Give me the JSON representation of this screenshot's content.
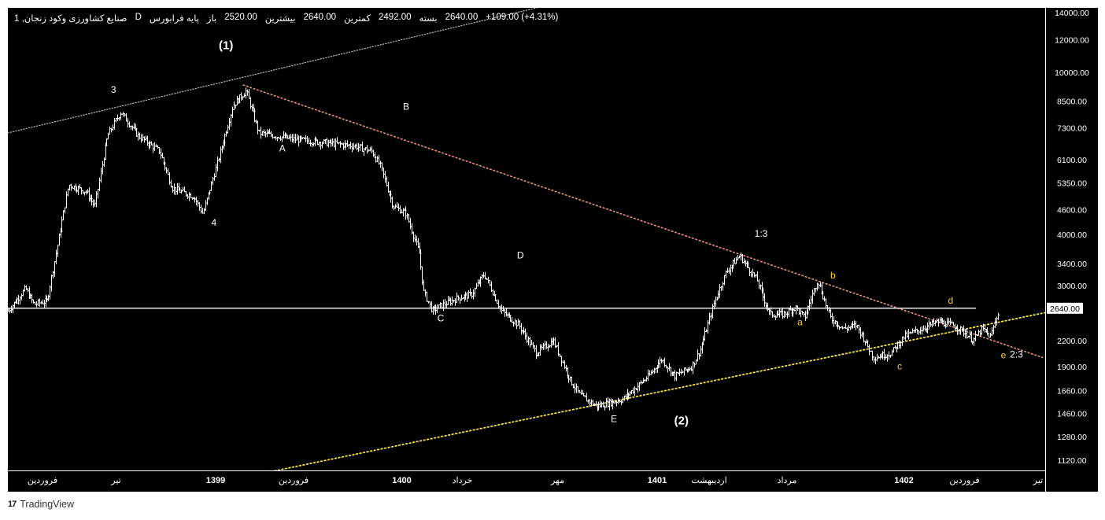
{
  "header": {
    "name": "صنایع کشاورزی وکود زنجان, 1",
    "suffix": "D",
    "market": "پایه فرابورس",
    "open_label": "باز",
    "open": "2520.00",
    "high_label": "بیشترین",
    "high": "2640.00",
    "low_label": "کمترین",
    "low": "2492.00",
    "close_label": "بسته",
    "close": "2640.00",
    "change": "+109.00 (+4.31%)"
  },
  "footer": {
    "logo_text": "TradingView",
    "logo_mark": "17"
  },
  "colors": {
    "background": "#000000",
    "bars": "#ffffff",
    "resistance_line": "#e8908a",
    "support_line": "#f2e34a",
    "gray_line": "#bfbfbf",
    "label_white": "#ffffff",
    "label_yellow": "#f2d33a"
  },
  "chart_data": {
    "type": "ohlc",
    "y_scale": "log",
    "y_ticks": [
      14000,
      12000,
      10000,
      8500,
      7300,
      6100,
      5350,
      4600,
      4000,
      3400,
      3000,
      2640,
      2200,
      1900,
      1660,
      1460,
      1280,
      1120
    ],
    "y_tick_labels": [
      "14000.00",
      "12000.00",
      "10000.00",
      "8500.00",
      "7300.00",
      "6100.00",
      "5350.00",
      "4600.00",
      "4000.00",
      "3400.00",
      "3000.00",
      "2640.00",
      "2200.00",
      "1900.00",
      "1660.00",
      "1460.00",
      "1280.00",
      "1120.00"
    ],
    "last_price": 2640,
    "last_price_label": "2640.00",
    "x_ticks": [
      {
        "label": "فروردین",
        "t": 0.04
      },
      {
        "label": "تیر",
        "t": 0.125
      },
      {
        "label": "1399",
        "t": 0.24
      },
      {
        "label": "فروردین",
        "t": 0.33
      },
      {
        "label": "1400",
        "t": 0.455
      },
      {
        "label": "خرداد",
        "t": 0.525
      },
      {
        "label": "مهر",
        "t": 0.635
      },
      {
        "label": "1401",
        "t": 0.75
      },
      {
        "label": "اردیبهشت",
        "t": 0.81
      },
      {
        "label": "مرداد",
        "t": 0.9
      },
      {
        "label": "1402",
        "t": 1.035
      },
      {
        "label": "فروردین",
        "t": 1.105
      },
      {
        "label": "تیر",
        "t": 1.19
      }
    ],
    "price_path": [
      {
        "t": 0.0,
        "p": 2600
      },
      {
        "t": 0.02,
        "p": 2950
      },
      {
        "t": 0.03,
        "p": 2700
      },
      {
        "t": 0.045,
        "p": 2750
      },
      {
        "t": 0.07,
        "p": 5300
      },
      {
        "t": 0.09,
        "p": 5100
      },
      {
        "t": 0.1,
        "p": 4700
      },
      {
        "t": 0.115,
        "p": 7000
      },
      {
        "t": 0.13,
        "p": 8000
      },
      {
        "t": 0.15,
        "p": 7000
      },
      {
        "t": 0.175,
        "p": 6400
      },
      {
        "t": 0.19,
        "p": 5200
      },
      {
        "t": 0.215,
        "p": 4950
      },
      {
        "t": 0.225,
        "p": 4500
      },
      {
        "t": 0.24,
        "p": 5800
      },
      {
        "t": 0.26,
        "p": 8300
      },
      {
        "t": 0.275,
        "p": 9000
      },
      {
        "t": 0.29,
        "p": 7100
      },
      {
        "t": 0.33,
        "p": 6850
      },
      {
        "t": 0.4,
        "p": 6600
      },
      {
        "t": 0.42,
        "p": 6400
      },
      {
        "t": 0.43,
        "p": 5900
      },
      {
        "t": 0.445,
        "p": 4700
      },
      {
        "t": 0.46,
        "p": 4500
      },
      {
        "t": 0.475,
        "p": 3600
      },
      {
        "t": 0.48,
        "p": 2900
      },
      {
        "t": 0.49,
        "p": 2600
      },
      {
        "t": 0.5,
        "p": 2680
      },
      {
        "t": 0.52,
        "p": 2800
      },
      {
        "t": 0.535,
        "p": 2850
      },
      {
        "t": 0.55,
        "p": 3200
      },
      {
        "t": 0.57,
        "p": 2600
      },
      {
        "t": 0.59,
        "p": 2400
      },
      {
        "t": 0.61,
        "p": 2050
      },
      {
        "t": 0.63,
        "p": 2200
      },
      {
        "t": 0.65,
        "p": 1750
      },
      {
        "t": 0.66,
        "p": 1620
      },
      {
        "t": 0.68,
        "p": 1520
      },
      {
        "t": 0.71,
        "p": 1580
      },
      {
        "t": 0.74,
        "p": 1800
      },
      {
        "t": 0.755,
        "p": 1980
      },
      {
        "t": 0.77,
        "p": 1800
      },
      {
        "t": 0.79,
        "p": 1900
      },
      {
        "t": 0.8,
        "p": 2100
      },
      {
        "t": 0.815,
        "p": 2700
      },
      {
        "t": 0.83,
        "p": 3250
      },
      {
        "t": 0.845,
        "p": 3550
      },
      {
        "t": 0.865,
        "p": 3100
      },
      {
        "t": 0.88,
        "p": 2550
      },
      {
        "t": 0.895,
        "p": 2550
      },
      {
        "t": 0.91,
        "p": 2650
      },
      {
        "t": 0.92,
        "p": 2500
      },
      {
        "t": 0.935,
        "p": 3100
      },
      {
        "t": 0.95,
        "p": 2500
      },
      {
        "t": 0.965,
        "p": 2350
      },
      {
        "t": 0.98,
        "p": 2400
      },
      {
        "t": 1.0,
        "p": 2000
      },
      {
        "t": 1.02,
        "p": 2050
      },
      {
        "t": 1.035,
        "p": 2250
      },
      {
        "t": 1.055,
        "p": 2350
      },
      {
        "t": 1.075,
        "p": 2450
      },
      {
        "t": 1.095,
        "p": 2380
      },
      {
        "t": 1.105,
        "p": 2300
      },
      {
        "t": 1.115,
        "p": 2200
      },
      {
        "t": 1.125,
        "p": 2350
      },
      {
        "t": 1.135,
        "p": 2250
      },
      {
        "t": 1.145,
        "p": 2640
      }
    ],
    "trendlines": [
      {
        "name": "upper-channel",
        "style": "gray",
        "from": {
          "t": 0.0,
          "p": 7100
        },
        "to": {
          "t": 0.6,
          "p": 14200
        }
      },
      {
        "name": "resistance",
        "style": "red",
        "from": {
          "t": 0.272,
          "p": 9300
        },
        "to": {
          "t": 1.195,
          "p": 2000
        }
      },
      {
        "name": "support",
        "style": "yellow",
        "from": {
          "t": 0.255,
          "p": 1000
        },
        "to": {
          "t": 1.2,
          "p": 2580
        }
      }
    ],
    "annotations": [
      {
        "text": "(1)",
        "t": 0.252,
        "p": 11400,
        "color": "white"
      },
      {
        "text": "3",
        "t": 0.122,
        "p": 8900,
        "color": "white"
      },
      {
        "text": "4",
        "t": 0.238,
        "p": 4200,
        "color": "white"
      },
      {
        "text": "A",
        "t": 0.317,
        "p": 6400,
        "color": "white"
      },
      {
        "text": "B",
        "t": 0.46,
        "p": 8100,
        "color": "white"
      },
      {
        "text": "C",
        "t": 0.5,
        "p": 2450,
        "color": "white"
      },
      {
        "text": "D",
        "t": 0.592,
        "p": 3500,
        "color": "white"
      },
      {
        "text": "E",
        "t": 0.7,
        "p": 1390,
        "color": "white"
      },
      {
        "text": "(2)",
        "t": 0.778,
        "p": 1370,
        "color": "white"
      },
      {
        "text": "1:3",
        "t": 0.87,
        "p": 3950,
        "color": "white"
      },
      {
        "text": "a",
        "t": 0.915,
        "p": 2400,
        "color": "yellow"
      },
      {
        "text": "b",
        "t": 0.953,
        "p": 3120,
        "color": "yellow"
      },
      {
        "text": "c",
        "t": 1.03,
        "p": 1870,
        "color": "yellow"
      },
      {
        "text": "d",
        "t": 1.089,
        "p": 2710,
        "color": "yellow"
      },
      {
        "text": "e",
        "t": 1.15,
        "p": 1990,
        "color": "yellow"
      },
      {
        "text": "2:3",
        "t": 1.165,
        "p": 2000,
        "color": "white"
      }
    ]
  }
}
